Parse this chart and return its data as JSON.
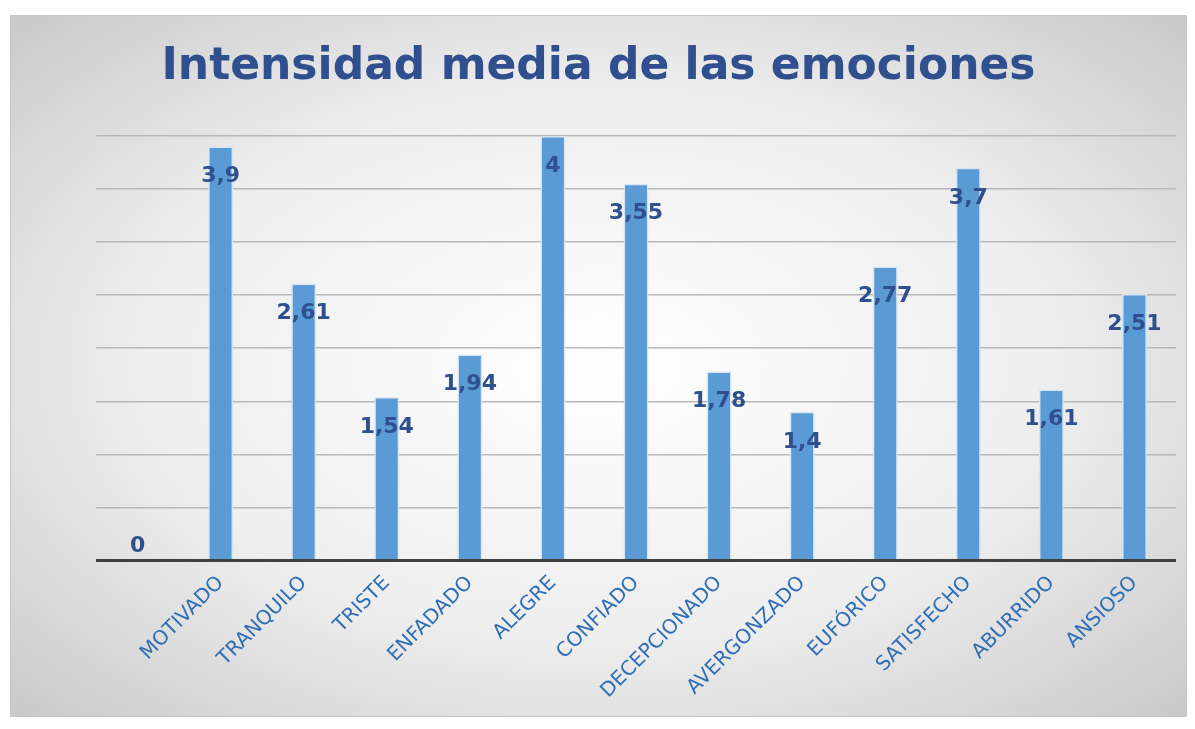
{
  "chart_data": {
    "type": "bar",
    "title": "Intensidad media de las emociones",
    "categories": [
      null,
      "MOTIVADO",
      "TRANQUILO",
      "TRISTE",
      "ENFADADO",
      "ALEGRE",
      "CONFIADO",
      "DECEPCIONADO",
      "AVERGONZADO",
      "EUFÓRICO",
      "SATISFECHO",
      "ABURRIDO",
      "ANSIOSO"
    ],
    "values": [
      0,
      3.9,
      2.61,
      1.54,
      1.94,
      4,
      3.55,
      1.78,
      1.4,
      2.77,
      3.7,
      1.61,
      2.51
    ],
    "value_labels": [
      "0",
      "3,9",
      "2,61",
      "1,54",
      "1,94",
      "4",
      "3,55",
      "1,78",
      "1,4",
      "2,77",
      "3,7",
      "1,61",
      "2,51"
    ],
    "color": "#5b9bd5",
    "grid": "y",
    "tick_labels": "x"
  }
}
